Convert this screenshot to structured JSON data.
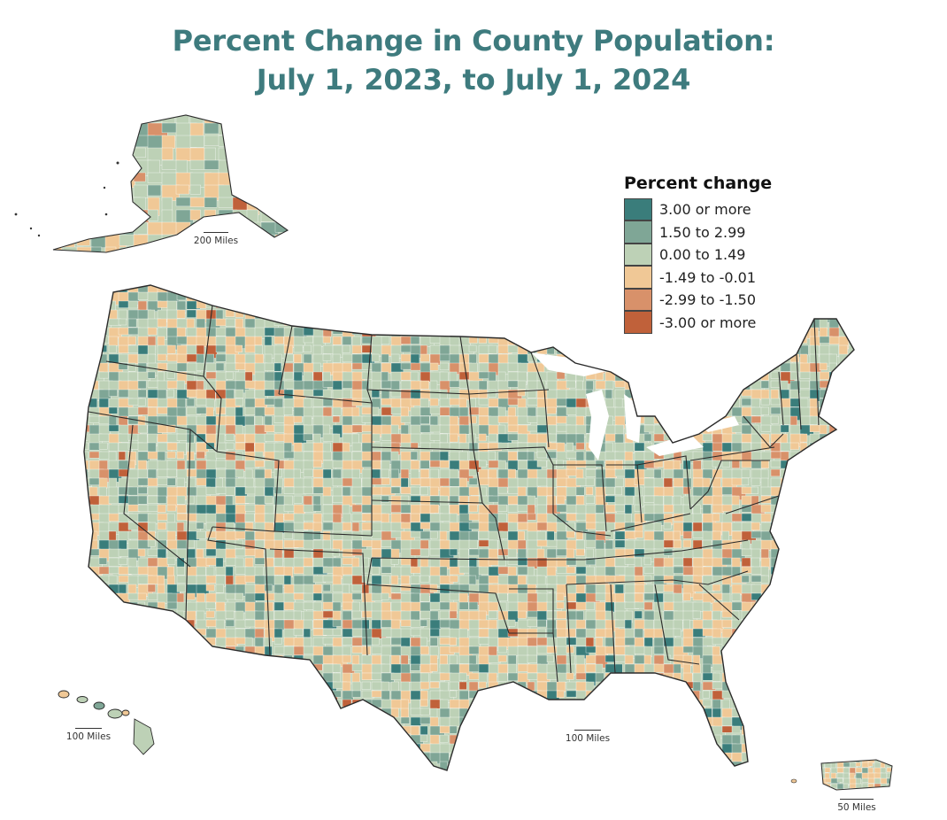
{
  "title": {
    "line1": "Percent Change in County Population:",
    "line2": "July 1, 2023, to July 1, 2024"
  },
  "legend": {
    "title": "Percent change",
    "items": [
      {
        "label": "3.00 or more",
        "color": "#3a7d7b"
      },
      {
        "label": "1.50 to 2.99",
        "color": "#7fa696"
      },
      {
        "label": "0.00 to 1.49",
        "color": "#bdd1b6"
      },
      {
        "label": "-1.49 to -0.01",
        "color": "#f0c896"
      },
      {
        "label": "-2.99 to -1.50",
        "color": "#d8916a"
      },
      {
        "label": "-3.00 or more",
        "color": "#c0613a"
      }
    ]
  },
  "scale_bars": {
    "alaska": "200 Miles",
    "hawaii": "100 Miles",
    "conus": "100 Miles",
    "puerto_rico": "50 Miles"
  },
  "colors": {
    "title": "#3e7b7e",
    "state_border": "#2b2b2b",
    "county_border": "#ffffff"
  }
}
